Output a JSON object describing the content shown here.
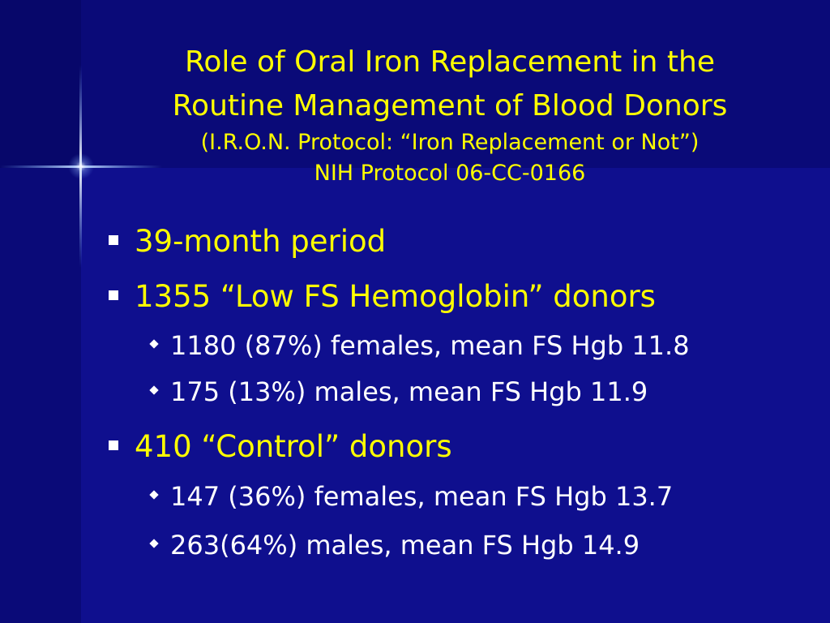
{
  "title": {
    "line1": "Role of Oral Iron Replacement in the",
    "line2": "Routine Management of Blood Donors",
    "sub1": "(I.R.O.N. Protocol: “Iron Replacement or Not”)",
    "sub2": "NIH Protocol 06-CC-0166"
  },
  "bullets": [
    {
      "text": "39-month period",
      "subs": []
    },
    {
      "text": "1355 “Low FS Hemoglobin” donors",
      "subs": [
        "1180 (87%) females, mean FS Hgb 11.8",
        "175 (13%) males, mean FS Hgb 11.9"
      ]
    },
    {
      "text": "410 “Control” donors",
      "subs": [
        "147 (36%) females, mean FS Hgb 13.7",
        "263(64%) males, mean FS Hgb 14.9"
      ]
    }
  ],
  "colors": {
    "background": "#0f0f8e",
    "title": "#ffff00",
    "sub_bullet": "#ffffff"
  }
}
